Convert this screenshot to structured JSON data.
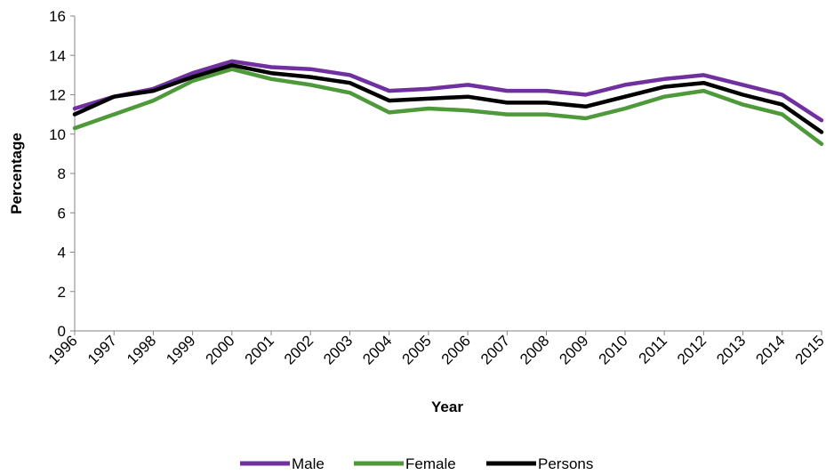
{
  "chart_data": {
    "type": "line",
    "title": "",
    "xlabel": "Year",
    "ylabel": "Percentage",
    "ylim": [
      0,
      16
    ],
    "yticks": [
      0,
      2,
      4,
      6,
      8,
      10,
      12,
      14,
      16
    ],
    "grid": false,
    "legend_position": "bottom",
    "categories": [
      "1996",
      "1997",
      "1998",
      "1999",
      "2000",
      "2001",
      "2002",
      "2003",
      "2004",
      "2005",
      "2006",
      "2007",
      "2008",
      "2009",
      "2010",
      "2011",
      "2012",
      "2013",
      "2014",
      "2015"
    ],
    "series": [
      {
        "name": "Male",
        "color": "#7030A0",
        "values": [
          11.3,
          11.9,
          12.3,
          13.1,
          13.7,
          13.4,
          13.3,
          13.0,
          12.2,
          12.3,
          12.5,
          12.2,
          12.2,
          12.0,
          12.5,
          12.8,
          13.0,
          12.5,
          12.0,
          10.7
        ]
      },
      {
        "name": "Female",
        "color": "#4E9A3A",
        "values": [
          10.3,
          11.0,
          11.7,
          12.7,
          13.3,
          12.8,
          12.5,
          12.1,
          11.1,
          11.3,
          11.2,
          11.0,
          11.0,
          10.8,
          11.3,
          11.9,
          12.2,
          11.5,
          11.0,
          9.5
        ]
      },
      {
        "name": "Persons",
        "color": "#000000",
        "values": [
          11.0,
          11.9,
          12.2,
          12.9,
          13.5,
          13.1,
          12.9,
          12.6,
          11.7,
          11.8,
          11.9,
          11.6,
          11.6,
          11.4,
          11.9,
          12.4,
          12.6,
          12.0,
          11.5,
          10.1
        ]
      }
    ]
  }
}
